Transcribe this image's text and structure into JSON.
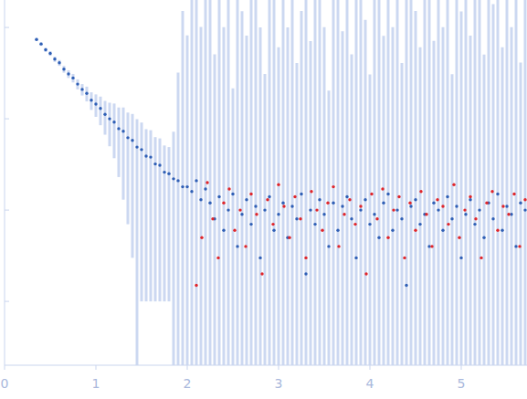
{
  "chart_data": {
    "type": "scatter",
    "log": "y",
    "tick_labels": "x",
    "xlim": [
      0,
      5.72
    ],
    "xticks": [
      0,
      1,
      2,
      3,
      4,
      5
    ],
    "ylim": [
      0.0002,
      2
    ],
    "yticks": [
      0.001,
      0.01,
      0.1,
      1
    ],
    "series": [
      {
        "color": "#2f5fb5",
        "marker": "circle",
        "x": [
          0.35,
          0.4,
          0.45,
          0.5,
          0.55,
          0.6,
          0.65,
          0.7,
          0.75,
          0.8,
          0.85,
          0.9,
          0.95,
          1.0,
          1.05,
          1.1,
          1.15,
          1.2,
          1.25,
          1.3,
          1.35,
          1.4,
          1.45,
          1.5,
          1.55,
          1.6,
          1.65,
          1.7,
          1.75,
          1.8,
          1.85,
          1.9,
          1.95,
          2.0,
          2.05,
          2.1,
          2.15,
          2.2,
          2.25,
          2.3,
          2.35,
          2.4,
          2.45,
          2.5,
          2.55,
          2.6,
          2.65,
          2.7,
          2.75,
          2.8,
          2.85,
          2.9,
          2.95,
          3.0,
          3.05,
          3.1,
          3.15,
          3.2,
          3.25,
          3.3,
          3.35,
          3.4,
          3.45,
          3.5,
          3.55,
          3.6,
          3.65,
          3.7,
          3.75,
          3.8,
          3.85,
          3.9,
          3.95,
          4.0,
          4.05,
          4.1,
          4.15,
          4.2,
          4.25,
          4.3,
          4.35,
          4.4,
          4.45,
          4.5,
          4.55,
          4.6,
          4.65,
          4.7,
          4.75,
          4.8,
          4.85,
          4.9,
          4.95,
          5.0,
          5.05,
          5.1,
          5.15,
          5.2,
          5.25,
          5.3,
          5.35,
          5.4,
          5.45,
          5.5,
          5.55,
          5.6,
          5.65,
          5.7
        ],
        "values": [
          0.74,
          0.66,
          0.57,
          0.52,
          0.45,
          0.41,
          0.35,
          0.31,
          0.28,
          0.24,
          0.21,
          0.19,
          0.16,
          0.145,
          0.13,
          0.112,
          0.1,
          0.092,
          0.078,
          0.073,
          0.062,
          0.058,
          0.049,
          0.046,
          0.039,
          0.038,
          0.032,
          0.031,
          0.026,
          0.025,
          0.022,
          0.021,
          0.018,
          0.018,
          0.016,
          0.021,
          0.013,
          0.017,
          0.012,
          0.008,
          0.014,
          0.006,
          0.01,
          0.015,
          0.004,
          0.009,
          0.013,
          0.007,
          0.011,
          0.003,
          0.01,
          0.014,
          0.006,
          0.009,
          0.012,
          0.005,
          0.011,
          0.008,
          0.015,
          0.002,
          0.01,
          0.007,
          0.013,
          0.009,
          0.004,
          0.012,
          0.006,
          0.011,
          0.014,
          0.008,
          0.003,
          0.01,
          0.013,
          0.007,
          0.009,
          0.005,
          0.012,
          0.015,
          0.006,
          0.01,
          0.008,
          0.0015,
          0.011,
          0.013,
          0.007,
          0.009,
          0.004,
          0.012,
          0.01,
          0.006,
          0.014,
          0.008,
          0.011,
          0.003,
          0.009,
          0.013,
          0.007,
          0.01,
          0.005,
          0.012,
          0.008,
          0.015,
          0.006,
          0.011,
          0.009,
          0.004,
          0.012,
          0.01
        ],
        "errors": [
          0.03,
          0.03,
          0.03,
          0.03,
          0.03,
          0.03,
          0.03,
          0.03,
          0.03,
          0.03,
          0.03,
          0.035,
          0.035,
          0.04,
          0.045,
          0.045,
          0.05,
          0.055,
          0.055,
          0.06,
          0.055,
          0.055,
          0.05,
          0.045,
          0.038,
          0.037,
          0.031,
          0.03,
          0.025,
          0.024,
          0.05,
          0.3,
          1.5,
          0.8,
          2,
          3,
          1,
          2.5,
          3,
          0.5,
          2,
          1,
          4,
          0.2,
          3,
          1.5,
          0.8,
          5,
          2,
          1,
          0.3,
          4,
          2.5,
          0.6,
          3,
          1,
          5,
          0.4,
          1.5,
          3,
          0.7,
          2,
          4,
          1,
          0.2,
          3.5,
          2,
          0.9,
          5,
          0.5,
          2,
          3,
          1.2,
          0.3,
          4,
          2,
          0.8,
          3,
          1,
          2.5,
          0.4,
          3,
          5,
          1.5,
          0.6,
          2,
          4,
          0.7,
          3,
          1,
          2,
          0.3,
          4.5,
          1.5,
          3,
          0.8,
          2,
          5,
          0.5,
          3,
          1.8,
          4,
          0.6,
          2.5,
          1,
          3,
          0.4,
          2
        ]
      },
      {
        "color": "#e0252a",
        "marker": "circle",
        "x": [
          2.1,
          2.16,
          2.22,
          2.28,
          2.34,
          2.4,
          2.46,
          2.52,
          2.58,
          2.64,
          2.7,
          2.76,
          2.82,
          2.88,
          2.94,
          3.0,
          3.06,
          3.12,
          3.18,
          3.24,
          3.3,
          3.36,
          3.42,
          3.48,
          3.54,
          3.6,
          3.66,
          3.72,
          3.78,
          3.84,
          3.9,
          3.96,
          4.02,
          4.08,
          4.14,
          4.2,
          4.26,
          4.32,
          4.38,
          4.44,
          4.5,
          4.56,
          4.62,
          4.68,
          4.74,
          4.8,
          4.86,
          4.92,
          4.98,
          5.04,
          5.1,
          5.16,
          5.22,
          5.28,
          5.34,
          5.4,
          5.46,
          5.52,
          5.58,
          5.64,
          5.7
        ],
        "values": [
          0.0015,
          0.005,
          0.02,
          0.008,
          0.003,
          0.012,
          0.017,
          0.006,
          0.01,
          0.004,
          0.015,
          0.009,
          0.002,
          0.013,
          0.007,
          0.019,
          0.011,
          0.005,
          0.014,
          0.008,
          0.003,
          0.016,
          0.01,
          0.006,
          0.012,
          0.018,
          0.004,
          0.009,
          0.013,
          0.007,
          0.011,
          0.002,
          0.015,
          0.008,
          0.017,
          0.005,
          0.01,
          0.014,
          0.003,
          0.012,
          0.006,
          0.016,
          0.009,
          0.004,
          0.013,
          0.011,
          0.007,
          0.019,
          0.005,
          0.01,
          0.014,
          0.008,
          0.003,
          0.012,
          0.016,
          0.006,
          0.011,
          0.009,
          0.015,
          0.004,
          0.013
        ]
      }
    ]
  }
}
